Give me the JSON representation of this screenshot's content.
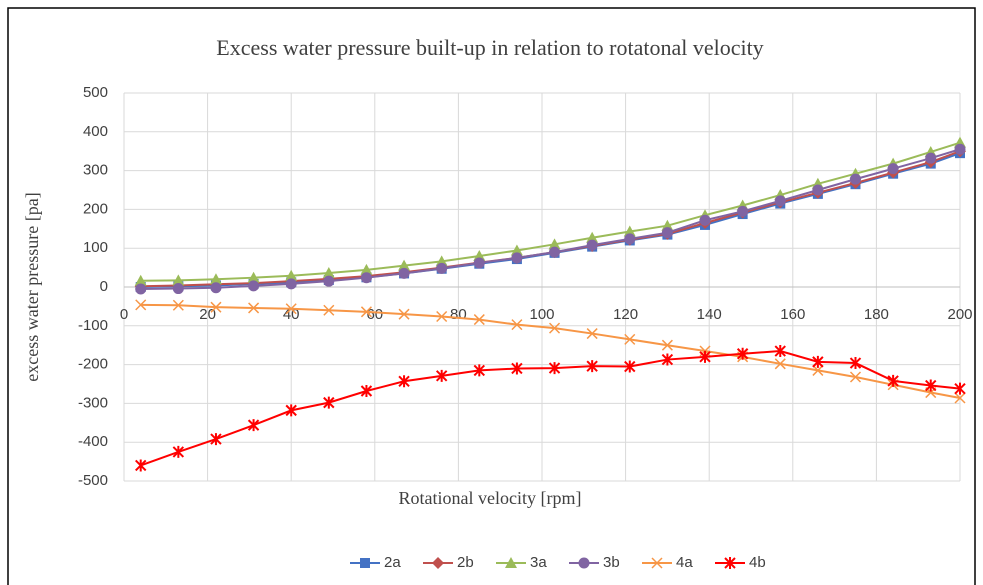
{
  "chart_data": {
    "type": "line",
    "title": "Excess water pressure built-up in relation to rotatonal velocity",
    "x_label": "Rotational velocity [rpm]",
    "y_label": "excess water pressure [pa]",
    "x": [
      4,
      13,
      22,
      31,
      40,
      49,
      58,
      67,
      76,
      85,
      94,
      103,
      112,
      121,
      130,
      139,
      148,
      157,
      166,
      175,
      184,
      193,
      200
    ],
    "series": [
      {
        "name": "2a",
        "color": "#4472c4",
        "marker": "square",
        "values": [
          0,
          2,
          4,
          8,
          12,
          18,
          25,
          35,
          47,
          60,
          72,
          88,
          104,
          120,
          135,
          160,
          188,
          215,
          240,
          265,
          292,
          318,
          345
        ]
      },
      {
        "name": "2b",
        "color": "#c0504d",
        "marker": "diamond",
        "values": [
          2,
          4,
          7,
          10,
          15,
          21,
          28,
          38,
          50,
          63,
          75,
          90,
          106,
          122,
          137,
          165,
          192,
          218,
          243,
          268,
          295,
          322,
          350
        ]
      },
      {
        "name": "3a",
        "color": "#9bbb59",
        "marker": "triangle",
        "values": [
          16,
          17,
          20,
          24,
          29,
          36,
          44,
          55,
          66,
          80,
          94,
          110,
          127,
          143,
          158,
          185,
          210,
          237,
          266,
          292,
          318,
          348,
          372
        ]
      },
      {
        "name": "3b",
        "color": "#8064a2",
        "marker": "circle",
        "values": [
          -5,
          -4,
          -2,
          3,
          8,
          15,
          24,
          35,
          48,
          62,
          75,
          90,
          108,
          124,
          140,
          172,
          195,
          222,
          250,
          278,
          305,
          332,
          355
        ]
      },
      {
        "name": "4a",
        "color": "#f79646",
        "marker": "x",
        "values": [
          -46,
          -47,
          -52,
          -54,
          -56,
          -60,
          -64,
          -70,
          -76,
          -84,
          -97,
          -106,
          -120,
          -135,
          -150,
          -165,
          -180,
          -198,
          -215,
          -232,
          -252,
          -272,
          -286
        ]
      },
      {
        "name": "4b",
        "color": "#ff0000",
        "marker": "star",
        "values": [
          -460,
          -425,
          -392,
          -356,
          -318,
          -298,
          -268,
          -243,
          -229,
          -215,
          -210,
          -209,
          -204,
          -205,
          -187,
          -180,
          -172,
          -165,
          -193,
          -196,
          -242,
          -254,
          -262
        ]
      }
    ],
    "xlim": [
      0,
      200
    ],
    "xticks": [
      0,
      20,
      40,
      60,
      80,
      100,
      120,
      140,
      160,
      180,
      200
    ],
    "ylim": [
      -500,
      500
    ],
    "yticks": [
      -500,
      -400,
      -300,
      -200,
      -100,
      0,
      100,
      200,
      300,
      400,
      500
    ],
    "grid": true,
    "legend": "bottom"
  }
}
